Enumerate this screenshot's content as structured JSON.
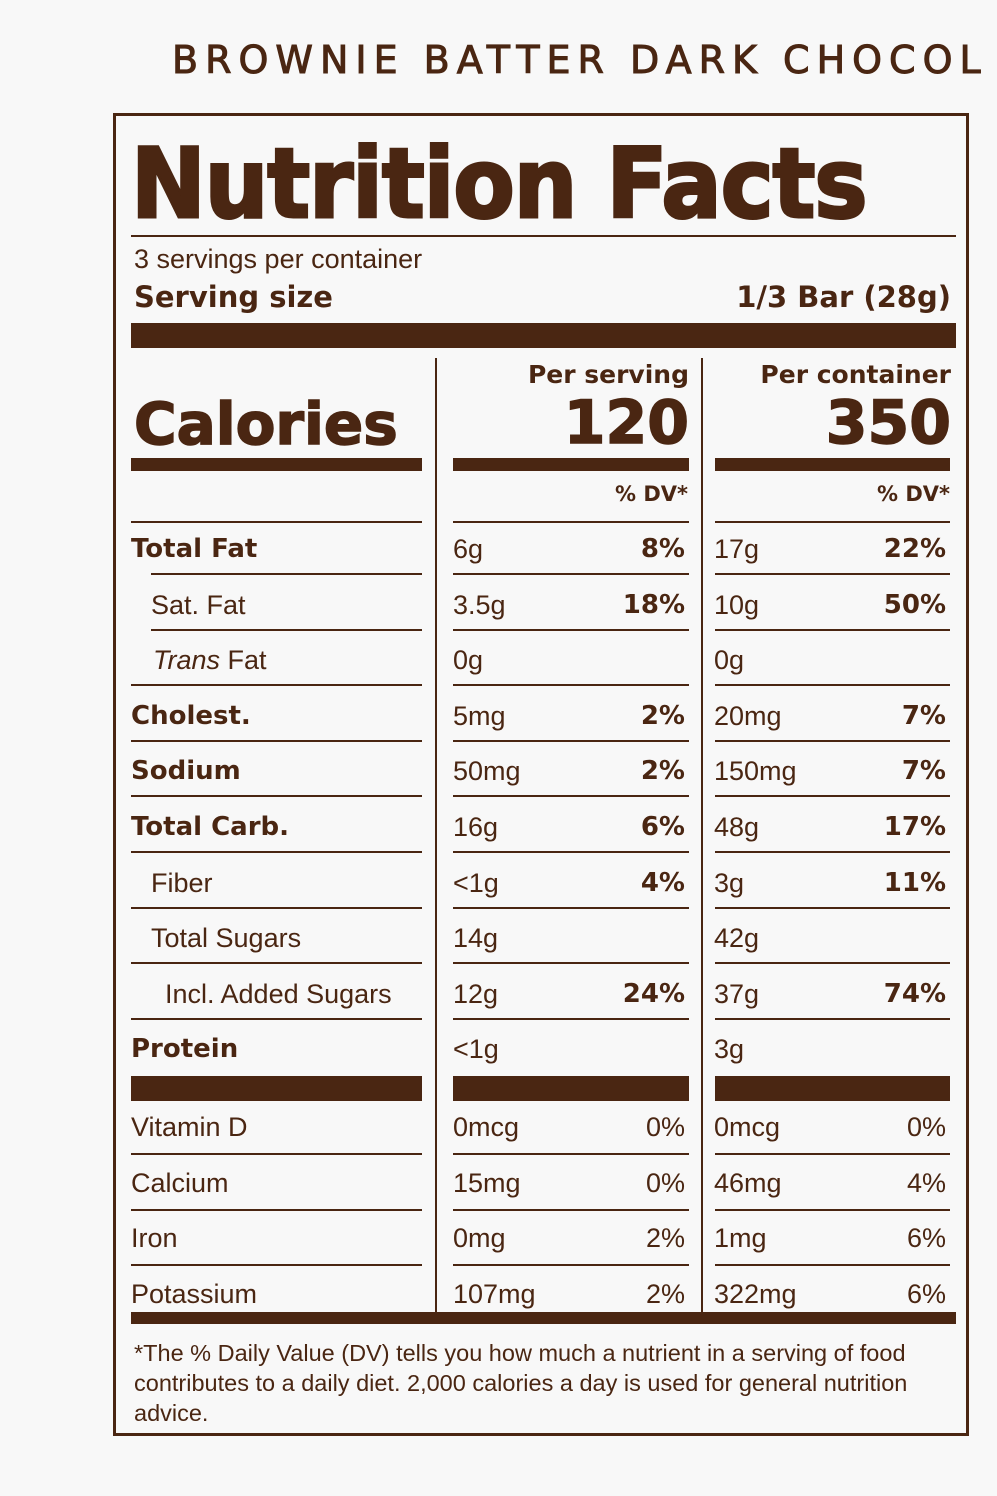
{
  "brand_title": "BROWNIE BATTER DARK CHOCOL",
  "label": {
    "title": "Nutrition Facts",
    "servings_per_container": "3 servings per container",
    "serving_size_label": "Serving size",
    "serving_size_value": "1/3 Bar (28g)",
    "calories_label": "Calories",
    "per_serving_label": "Per serving",
    "per_container_label": "Per container",
    "calories_per_serving": "120",
    "calories_per_container": "350",
    "dv_header": "% DV*",
    "nutrients": [
      {
        "name": "Total Fat",
        "style": "bold",
        "serving_amount": "6g",
        "serving_dv": "8%",
        "container_amount": "17g",
        "container_dv": "22%"
      },
      {
        "name": "Sat. Fat",
        "style": "indent",
        "serving_amount": "3.5g",
        "serving_dv": "18%",
        "container_amount": "10g",
        "container_dv": "50%"
      },
      {
        "name_italic": "Trans",
        "name": " Fat",
        "style": "trans",
        "serving_amount": "0g",
        "serving_dv": "",
        "container_amount": "0g",
        "container_dv": ""
      },
      {
        "name": "Cholest.",
        "style": "bold",
        "serving_amount": "5mg",
        "serving_dv": "2%",
        "container_amount": "20mg",
        "container_dv": "7%"
      },
      {
        "name": "Sodium",
        "style": "bold",
        "serving_amount": "50mg",
        "serving_dv": "2%",
        "container_amount": "150mg",
        "container_dv": "7%"
      },
      {
        "name": "Total Carb.",
        "style": "bold",
        "serving_amount": "16g",
        "serving_dv": "6%",
        "container_amount": "48g",
        "container_dv": "17%"
      },
      {
        "name": "Fiber",
        "style": "indent",
        "serving_amount": "<1g",
        "serving_dv": "4%",
        "container_amount": "3g",
        "container_dv": "11%"
      },
      {
        "name": "Total Sugars",
        "style": "indent",
        "serving_amount": "14g",
        "serving_dv": "",
        "container_amount": "42g",
        "container_dv": ""
      },
      {
        "name": "Incl. Added Sugars",
        "style": "indent2",
        "serving_amount": "12g",
        "serving_dv": "24%",
        "container_amount": "37g",
        "container_dv": "74%"
      },
      {
        "name": "Protein",
        "style": "bold",
        "serving_amount": "<1g",
        "serving_dv": "",
        "container_amount": "3g",
        "container_dv": ""
      }
    ],
    "vitamins": [
      {
        "name": "Vitamin D",
        "serving_amount": "0mcg",
        "serving_dv": "0%",
        "container_amount": "0mcg",
        "container_dv": "0%"
      },
      {
        "name": "Calcium",
        "serving_amount": "15mg",
        "serving_dv": "0%",
        "container_amount": "46mg",
        "container_dv": "4%"
      },
      {
        "name": "Iron",
        "serving_amount": "0mg",
        "serving_dv": "2%",
        "container_amount": "1mg",
        "container_dv": "6%"
      },
      {
        "name": "Potassium",
        "serving_amount": "107mg",
        "serving_dv": "2%",
        "container_amount": "322mg",
        "container_dv": "6%"
      }
    ],
    "footnote": "*The % Daily Value (DV) tells you how much a nutrient in a serving of food contributes to a daily diet. 2,000 calories a day is used for general nutrition advice."
  },
  "colors": {
    "ink": "#4a2612",
    "background": "#f8f8f8"
  }
}
